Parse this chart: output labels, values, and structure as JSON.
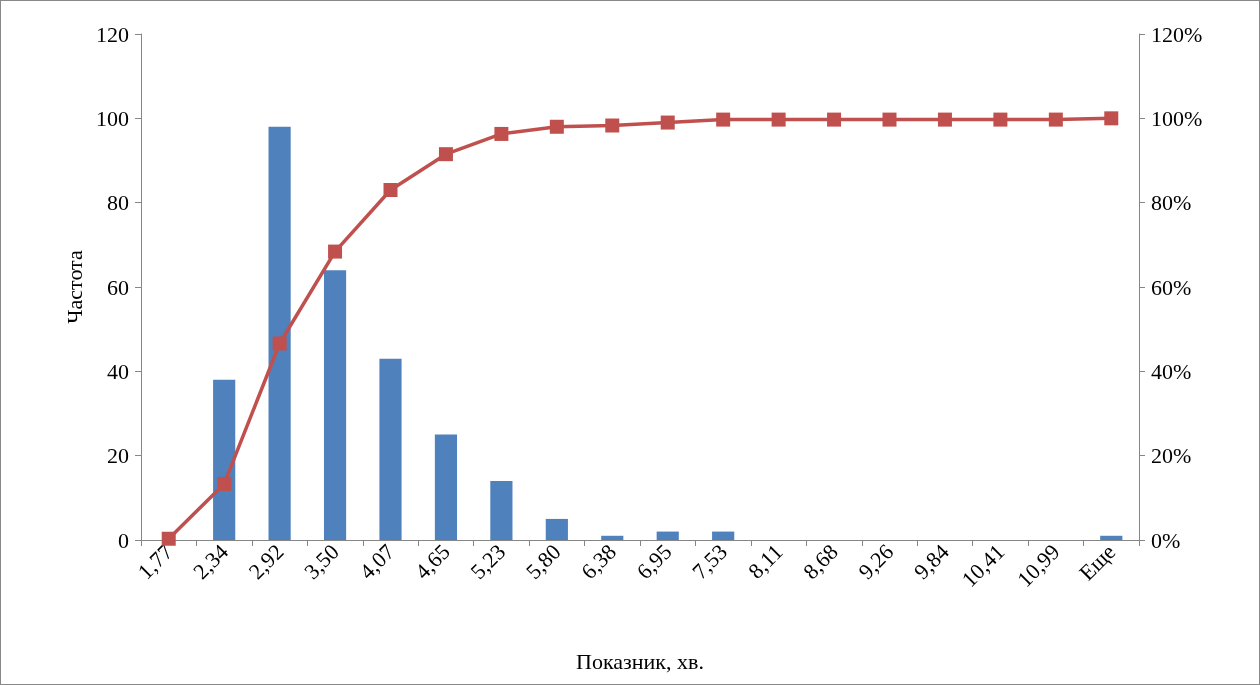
{
  "chart_data": {
    "type": "bar",
    "xlabel": "Показник, хв.",
    "ylabel": "Частота",
    "categories": [
      "1,77",
      "2,34",
      "2,92",
      "3,50",
      "4,07",
      "4,65",
      "5,23",
      "5,80",
      "6,38",
      "6,95",
      "7,53",
      "8,11",
      "8,68",
      "9,26",
      "9,84",
      "10,41",
      "10,99",
      "Еще"
    ],
    "series": [
      {
        "color": "#4f81bd",
        "values": [
          null,
          38,
          98,
          64,
          43,
          25,
          14,
          5,
          1,
          2,
          2,
          0,
          0,
          0,
          0,
          0,
          0,
          1
        ]
      },
      {
        "type": "line",
        "axis": "y2",
        "color": "#c0504d",
        "marker": "square",
        "values": [
          0.3,
          13.3,
          46.6,
          68.4,
          83.0,
          91.5,
          96.3,
          98.0,
          98.3,
          99.0,
          99.7,
          99.7,
          99.7,
          99.7,
          99.7,
          99.7,
          99.7,
          100
        ]
      }
    ],
    "ylim": [
      0,
      120
    ],
    "yticks": [
      0,
      20,
      40,
      60,
      80,
      100,
      120
    ],
    "y2lim": [
      0,
      120
    ],
    "y2ticks": [
      {
        "value": 0,
        "label": "0%"
      },
      {
        "value": 20,
        "label": "20%"
      },
      {
        "value": 40,
        "label": "40%"
      },
      {
        "value": 60,
        "label": "60%"
      },
      {
        "value": 80,
        "label": "80%"
      },
      {
        "value": 100,
        "label": "100%"
      },
      {
        "value": 120,
        "label": "120%"
      }
    ],
    "grid": false
  }
}
